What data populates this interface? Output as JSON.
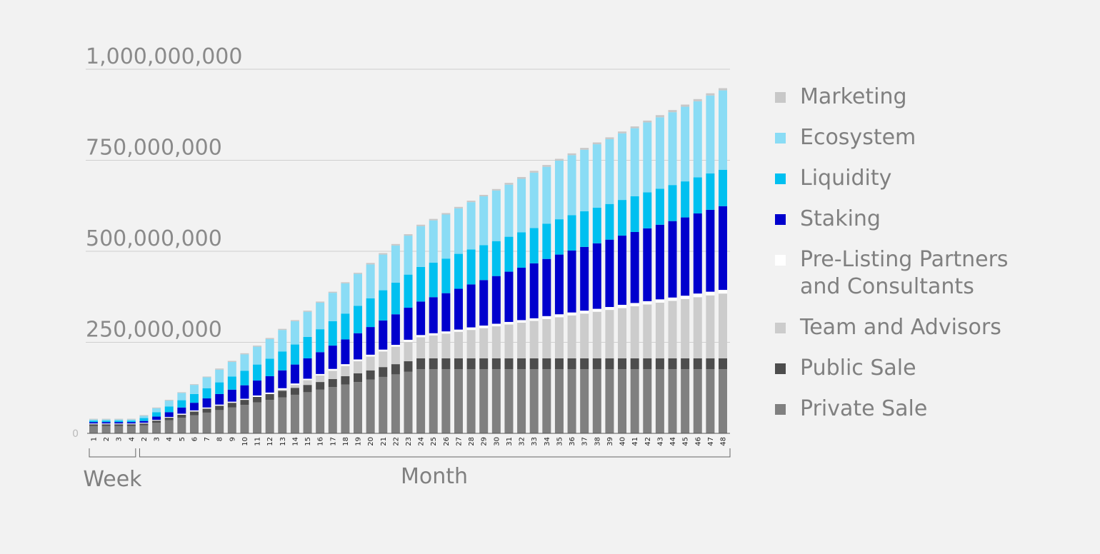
{
  "chart_data": {
    "type": "stacked_bar",
    "categories": [
      "1",
      "2",
      "3",
      "4",
      "2",
      "3",
      "4",
      "5",
      "6",
      "7",
      "8",
      "9",
      "10",
      "11",
      "12",
      "13",
      "14",
      "15",
      "16",
      "17",
      "18",
      "19",
      "20",
      "21",
      "22",
      "23",
      "24",
      "25",
      "26",
      "27",
      "28",
      "29",
      "30",
      "31",
      "32",
      "33",
      "34",
      "35",
      "36",
      "37",
      "38",
      "39",
      "40",
      "41",
      "42",
      "43",
      "44",
      "45",
      "46",
      "47",
      "48"
    ],
    "group_labels": [
      "Week",
      "Month"
    ],
    "ylim": [
      0,
      1000000000
    ],
    "yticks": [
      0,
      {
        "value": 250000000,
        "label": "250,000,000"
      },
      {
        "value": 500000000,
        "label": "500,000,000"
      },
      {
        "value": 750000000,
        "label": "750,000,000"
      },
      {
        "value": 1000000000,
        "label": "1,000,000,000"
      }
    ],
    "grid": true,
    "legend": "right",
    "series": [
      {
        "name": "Private Sale",
        "color": "#808080",
        "values": [
          20000000,
          20000000,
          20000000,
          20000000,
          22000000,
          29000000,
          36000000,
          43000000,
          50000000,
          57000000,
          64000000,
          71000000,
          78000000,
          85000000,
          92000000,
          99000000,
          106000000,
          113000000,
          120000000,
          127000000,
          134000000,
          141000000,
          148000000,
          155000000,
          162000000,
          169000000,
          176000000,
          176000000,
          176000000,
          176000000,
          176000000,
          176000000,
          176000000,
          176000000,
          176000000,
          176000000,
          176000000,
          176000000,
          176000000,
          176000000,
          176000000,
          176000000,
          176000000,
          176000000,
          176000000,
          176000000,
          176000000,
          176000000,
          176000000,
          176000000,
          176000000
        ]
      },
      {
        "name": "Public Sale",
        "color": "#4d4d4d",
        "values": [
          5000000,
          5000000,
          5000000,
          5000000,
          5000000,
          6000000,
          7000000,
          8000000,
          10000000,
          11000000,
          12000000,
          13000000,
          14000000,
          15000000,
          16000000,
          18000000,
          19000000,
          20000000,
          21000000,
          22000000,
          23000000,
          24000000,
          25000000,
          27000000,
          28000000,
          29000000,
          30000000,
          30000000,
          30000000,
          30000000,
          30000000,
          30000000,
          30000000,
          30000000,
          30000000,
          30000000,
          30000000,
          30000000,
          30000000,
          30000000,
          30000000,
          30000000,
          30000000,
          30000000,
          30000000,
          30000000,
          30000000,
          30000000,
          30000000,
          30000000,
          30000000
        ]
      },
      {
        "name": "Team and Advisors",
        "color": "#cccccc",
        "values": [
          0,
          0,
          0,
          0,
          0,
          0,
          0,
          0,
          0,
          0,
          0,
          0,
          0,
          0,
          0,
          3000000,
          8000000,
          13000000,
          18000000,
          23000000,
          28000000,
          33000000,
          38000000,
          43000000,
          48000000,
          53000000,
          58000000,
          63000000,
          68000000,
          73000000,
          78000000,
          83000000,
          88000000,
          93000000,
          98000000,
          103000000,
          108000000,
          113000000,
          118000000,
          123000000,
          128000000,
          133000000,
          138000000,
          143000000,
          148000000,
          153000000,
          158000000,
          163000000,
          168000000,
          173000000,
          178000000
        ]
      },
      {
        "name": "Pre-Listing Partners and Consultants",
        "color": "#ffffff",
        "values": [
          2000000,
          2000000,
          2000000,
          2000000,
          2000000,
          2000000,
          2000000,
          3000000,
          3000000,
          3000000,
          3000000,
          3000000,
          3000000,
          4000000,
          4000000,
          4000000,
          4000000,
          4000000,
          4000000,
          5000000,
          5000000,
          5000000,
          5000000,
          5000000,
          5000000,
          6000000,
          6000000,
          6000000,
          6000000,
          6000000,
          7000000,
          7000000,
          7000000,
          7000000,
          7000000,
          7000000,
          8000000,
          8000000,
          8000000,
          8000000,
          8000000,
          8000000,
          9000000,
          9000000,
          9000000,
          9000000,
          9000000,
          9000000,
          10000000,
          10000000,
          10000000
        ]
      },
      {
        "name": "Staking",
        "color": "#0000cd",
        "values": [
          4000000,
          4000000,
          4000000,
          4000000,
          5000000,
          9000000,
          13000000,
          17000000,
          21000000,
          25000000,
          29000000,
          33000000,
          37000000,
          41000000,
          45000000,
          49000000,
          52000000,
          56000000,
          60000000,
          64000000,
          68000000,
          72000000,
          76000000,
          80000000,
          84000000,
          88000000,
          92000000,
          99000000,
          105000000,
          112000000,
          118000000,
          125000000,
          131000000,
          138000000,
          144000000,
          151000000,
          157000000,
          164000000,
          170000000,
          175000000,
          180000000,
          185000000,
          190000000,
          195000000,
          200000000,
          205000000,
          210000000,
          215000000,
          220000000,
          225000000,
          230000000
        ]
      },
      {
        "name": "Liquidity",
        "color": "#00c0f0",
        "values": [
          4000000,
          4000000,
          4000000,
          4000000,
          8000000,
          12000000,
          16000000,
          20000000,
          24000000,
          28000000,
          32000000,
          36000000,
          40000000,
          44000000,
          48000000,
          52000000,
          55000000,
          59000000,
          63000000,
          67000000,
          71000000,
          75000000,
          79000000,
          83000000,
          87000000,
          91000000,
          95000000,
          95000000,
          95000000,
          96000000,
          96000000,
          96000000,
          96000000,
          96000000,
          97000000,
          97000000,
          97000000,
          97000000,
          97000000,
          98000000,
          98000000,
          98000000,
          98000000,
          98000000,
          99000000,
          99000000,
          99000000,
          99000000,
          99000000,
          100000000,
          100000000
        ]
      },
      {
        "name": "Ecosystem",
        "color": "#8adcf5",
        "values": [
          3000000,
          3000000,
          3000000,
          3000000,
          6000000,
          11000000,
          16000000,
          20000000,
          25000000,
          30000000,
          35000000,
          40000000,
          45000000,
          49000000,
          54000000,
          59000000,
          64000000,
          69000000,
          73000000,
          78000000,
          83000000,
          88000000,
          93000000,
          98000000,
          102000000,
          107000000,
          112000000,
          116000000,
          121000000,
          125000000,
          130000000,
          134000000,
          139000000,
          143000000,
          147000000,
          152000000,
          156000000,
          161000000,
          165000000,
          169000000,
          174000000,
          178000000,
          183000000,
          187000000,
          192000000,
          196000000,
          200000000,
          205000000,
          209000000,
          214000000,
          218000000
        ]
      },
      {
        "name": "Marketing",
        "color": "#c8c8c8",
        "values": [
          2000000,
          2000000,
          2000000,
          2000000,
          2000000,
          2000000,
          2000000,
          2000000,
          2000000,
          2000000,
          3000000,
          3000000,
          3000000,
          3000000,
          3000000,
          3000000,
          3000000,
          3000000,
          3000000,
          3000000,
          3000000,
          3000000,
          4000000,
          4000000,
          4000000,
          4000000,
          4000000,
          4000000,
          4000000,
          4000000,
          4000000,
          4000000,
          4000000,
          5000000,
          5000000,
          5000000,
          5000000,
          5000000,
          5000000,
          5000000,
          5000000,
          5000000,
          5000000,
          5000000,
          5000000,
          6000000,
          6000000,
          6000000,
          6000000,
          6000000,
          6000000
        ]
      }
    ]
  }
}
